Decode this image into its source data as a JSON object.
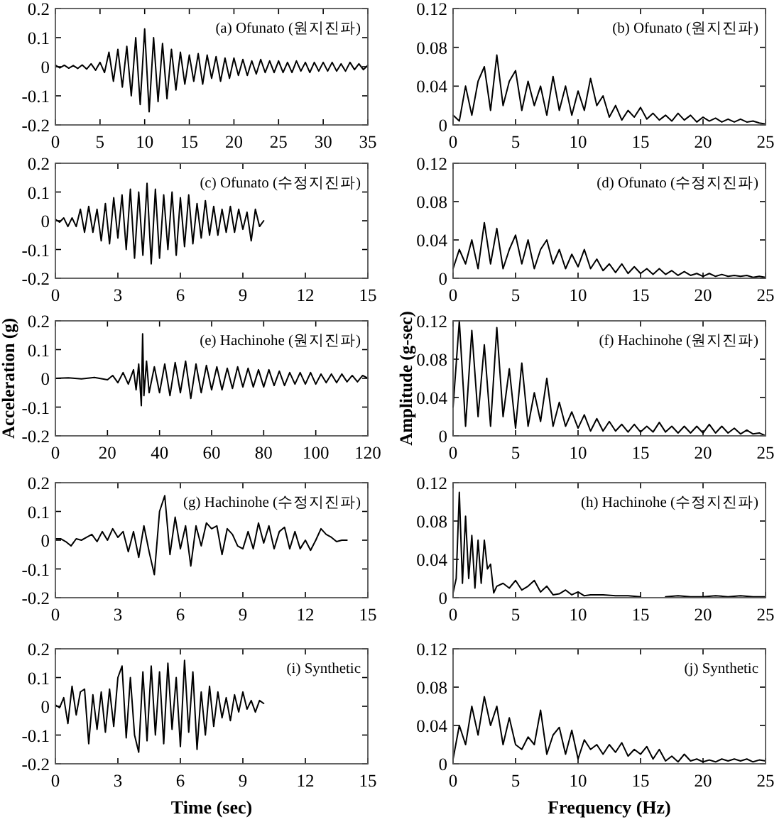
{
  "chart_data": [
    {
      "type": "line",
      "color": "#000000",
      "xlim": [
        0,
        35
      ],
      "xticks": [
        0,
        5,
        10,
        15,
        20,
        25,
        30,
        35
      ],
      "ylim": [
        -0.2,
        0.2
      ],
      "yticks": [
        -0.2,
        -0.1,
        0,
        0.1,
        0.2
      ],
      "annotations": [
        "(a) Ofunato (원지진파)"
      ],
      "x": [
        0,
        0.5,
        1,
        1.5,
        2,
        2.5,
        3,
        3.5,
        4,
        4.5,
        5,
        5.5,
        6,
        6.5,
        7,
        7.5,
        8,
        8.5,
        9,
        9.5,
        10,
        10.5,
        11,
        11.5,
        12,
        12.5,
        13,
        13.5,
        14,
        14.5,
        15,
        15.5,
        16,
        16.5,
        17,
        17.5,
        18,
        18.5,
        19,
        19.5,
        20,
        20.5,
        21,
        21.5,
        22,
        22.5,
        23,
        23.5,
        24,
        24.5,
        25,
        25.5,
        26,
        26.5,
        27,
        27.5,
        28,
        28.5,
        29,
        29.5,
        30,
        30.5,
        31,
        31.5,
        32,
        32.5,
        33,
        33.5,
        34,
        34.5,
        35
      ],
      "values": [
        0.005,
        -0.004,
        0.005,
        -0.005,
        0.004,
        -0.006,
        0.006,
        -0.008,
        0.01,
        -0.012,
        0.015,
        -0.02,
        0.05,
        -0.05,
        0.06,
        -0.07,
        0.07,
        -0.1,
        0.1,
        -0.13,
        0.13,
        -0.155,
        0.1,
        -0.12,
        0.08,
        -0.11,
        0.06,
        -0.08,
        0.05,
        -0.06,
        0.04,
        -0.05,
        0.045,
        -0.06,
        0.04,
        -0.04,
        0.035,
        -0.05,
        0.03,
        -0.04,
        0.03,
        -0.03,
        0.025,
        -0.03,
        0.02,
        -0.025,
        0.025,
        -0.02,
        0.02,
        -0.02,
        0.02,
        -0.02,
        0.015,
        -0.02,
        0.02,
        -0.015,
        0.015,
        -0.02,
        0.015,
        -0.015,
        0.015,
        -0.015,
        0.015,
        -0.015,
        0.01,
        -0.015,
        0.015,
        -0.01,
        0.01,
        -0.01,
        0.005
      ]
    },
    {
      "type": "line",
      "color": "#000000",
      "xlim": [
        0,
        25
      ],
      "xticks": [
        0,
        5,
        10,
        15,
        20,
        25
      ],
      "ylim": [
        0,
        0.12
      ],
      "yticks": [
        0,
        0.04,
        0.08,
        0.12
      ],
      "annotations": [
        "(b) Ofunato (원지진파)"
      ],
      "x": [
        0,
        0.5,
        1,
        1.5,
        2,
        2.5,
        3,
        3.5,
        4,
        4.5,
        5,
        5.5,
        6,
        6.5,
        7,
        7.5,
        8,
        8.5,
        9,
        9.5,
        10,
        10.5,
        11,
        11.5,
        12,
        12.5,
        13,
        13.5,
        14,
        14.5,
        15,
        15.5,
        16,
        16.5,
        17,
        17.5,
        18,
        18.5,
        19,
        19.5,
        20,
        20.5,
        21,
        21.5,
        22,
        22.5,
        23,
        23.5,
        24,
        24.5,
        25
      ],
      "values": [
        0.01,
        0.004,
        0.04,
        0.01,
        0.045,
        0.06,
        0.015,
        0.072,
        0.02,
        0.045,
        0.056,
        0.015,
        0.045,
        0.02,
        0.04,
        0.01,
        0.05,
        0.015,
        0.04,
        0.01,
        0.035,
        0.015,
        0.048,
        0.02,
        0.03,
        0.008,
        0.02,
        0.005,
        0.015,
        0.008,
        0.018,
        0.006,
        0.012,
        0.005,
        0.01,
        0.004,
        0.012,
        0.005,
        0.01,
        0.003,
        0.008,
        0.004,
        0.007,
        0.003,
        0.006,
        0.003,
        0.006,
        0.003,
        0.004,
        0.002,
        0.001
      ]
    },
    {
      "type": "line",
      "color": "#000000",
      "xlim": [
        0,
        15
      ],
      "xticks": [
        0,
        3,
        6,
        9,
        12,
        15
      ],
      "ylim": [
        -0.2,
        0.2
      ],
      "yticks": [
        -0.2,
        -0.1,
        0,
        0.1,
        0.2
      ],
      "annotations": [
        "(c) Ofunato (수정지진파)"
      ],
      "x": [
        0,
        0.2,
        0.4,
        0.6,
        0.8,
        1,
        1.2,
        1.4,
        1.6,
        1.8,
        2,
        2.2,
        2.4,
        2.6,
        2.8,
        3,
        3.2,
        3.4,
        3.6,
        3.8,
        4,
        4.2,
        4.4,
        4.6,
        4.8,
        5,
        5.2,
        5.4,
        5.6,
        5.8,
        6,
        6.2,
        6.4,
        6.6,
        6.8,
        7,
        7.2,
        7.4,
        7.6,
        7.8,
        8,
        8.2,
        8.4,
        8.6,
        8.8,
        9,
        9.2,
        9.4,
        9.6,
        9.8,
        10
      ],
      "values": [
        0.005,
        -0.005,
        0.01,
        -0.02,
        0.01,
        -0.02,
        0.04,
        -0.04,
        0.05,
        -0.04,
        0.04,
        -0.07,
        0.06,
        -0.08,
        0.08,
        -0.06,
        0.09,
        -0.1,
        0.11,
        -0.13,
        0.1,
        -0.12,
        0.13,
        -0.15,
        0.11,
        -0.13,
        0.09,
        -0.1,
        0.1,
        -0.12,
        0.08,
        -0.09,
        0.09,
        -0.08,
        0.06,
        -0.06,
        0.07,
        -0.05,
        0.05,
        -0.05,
        0.04,
        -0.04,
        0.05,
        -0.04,
        0.04,
        -0.03,
        0.03,
        -0.07,
        0.04,
        -0.02,
        0
      ]
    },
    {
      "type": "line",
      "color": "#000000",
      "xlim": [
        0,
        25
      ],
      "xticks": [
        0,
        5,
        10,
        15,
        20,
        25
      ],
      "ylim": [
        0,
        0.12
      ],
      "yticks": [
        0,
        0.04,
        0.08,
        0.12
      ],
      "annotations": [
        "(d) Ofunato (수정지진파)"
      ],
      "x": [
        0,
        0.5,
        1,
        1.5,
        2,
        2.5,
        3,
        3.5,
        4,
        4.5,
        5,
        5.5,
        6,
        6.5,
        7,
        7.5,
        8,
        8.5,
        9,
        9.5,
        10,
        10.5,
        11,
        11.5,
        12,
        12.5,
        13,
        13.5,
        14,
        14.5,
        15,
        15.5,
        16,
        16.5,
        17,
        17.5,
        18,
        18.5,
        19,
        19.5,
        20,
        20.5,
        21,
        21.5,
        22,
        22.5,
        23,
        23.5,
        24,
        24.5,
        25
      ],
      "values": [
        0.01,
        0.03,
        0.015,
        0.04,
        0.01,
        0.058,
        0.015,
        0.052,
        0.01,
        0.03,
        0.045,
        0.015,
        0.04,
        0.01,
        0.03,
        0.04,
        0.015,
        0.03,
        0.01,
        0.025,
        0.012,
        0.03,
        0.01,
        0.02,
        0.008,
        0.015,
        0.006,
        0.015,
        0.005,
        0.012,
        0.005,
        0.01,
        0.004,
        0.01,
        0.004,
        0.008,
        0.003,
        0.007,
        0.003,
        0.005,
        0.002,
        0.005,
        0.002,
        0.004,
        0.002,
        0.003,
        0.002,
        0.003,
        0.001,
        0.002,
        0.001
      ]
    },
    {
      "type": "line",
      "color": "#000000",
      "xlim": [
        0,
        120
      ],
      "xticks": [
        0,
        20,
        40,
        60,
        80,
        100,
        120
      ],
      "ylim": [
        -0.2,
        0.2
      ],
      "yticks": [
        -0.2,
        -0.1,
        0,
        0.1,
        0.2
      ],
      "ylabel": "Acceleration (g)",
      "annotations": [
        "(e) Hachinohe (원지진파)"
      ],
      "x": [
        0,
        5,
        10,
        15,
        20,
        22,
        24,
        26,
        28,
        30,
        31,
        32,
        33,
        33.5,
        34,
        35,
        36,
        38,
        40,
        42,
        44,
        46,
        48,
        50,
        52,
        54,
        56,
        58,
        60,
        62,
        64,
        66,
        68,
        70,
        72,
        74,
        76,
        78,
        80,
        82,
        84,
        86,
        88,
        90,
        92,
        94,
        96,
        98,
        100,
        102,
        104,
        106,
        108,
        110,
        112,
        114,
        116,
        118,
        120
      ],
      "values": [
        0,
        0.002,
        -0.002,
        0.003,
        -0.005,
        0.01,
        -0.015,
        0.02,
        -0.02,
        0.03,
        -0.04,
        0.05,
        -0.095,
        0.155,
        -0.06,
        0.06,
        -0.05,
        0.04,
        -0.05,
        0.05,
        -0.06,
        0.055,
        -0.05,
        0.06,
        -0.07,
        0.05,
        -0.05,
        0.045,
        -0.04,
        0.04,
        -0.04,
        0.035,
        -0.035,
        0.04,
        -0.03,
        0.035,
        -0.03,
        0.03,
        -0.03,
        0.03,
        -0.025,
        0.025,
        -0.025,
        0.02,
        -0.02,
        0.02,
        -0.02,
        0.02,
        -0.02,
        0.015,
        -0.015,
        0.015,
        -0.015,
        0.015,
        -0.012,
        0.01,
        -0.012,
        0.01,
        0
      ]
    },
    {
      "type": "line",
      "color": "#000000",
      "xlim": [
        0,
        25
      ],
      "xticks": [
        0,
        5,
        10,
        15,
        20,
        25
      ],
      "ylim": [
        0,
        0.12
      ],
      "yticks": [
        0,
        0.04,
        0.08,
        0.12
      ],
      "ylabel": "Amplitude (g-sec)",
      "annotations": [
        "(f) Hachinohe (원지진파)"
      ],
      "x": [
        0,
        0.5,
        1,
        1.5,
        2,
        2.5,
        3,
        3.5,
        4,
        4.5,
        5,
        5.5,
        6,
        6.5,
        7,
        7.5,
        8,
        8.5,
        9,
        9.5,
        10,
        10.5,
        11,
        11.5,
        12,
        12.5,
        13,
        13.5,
        14,
        14.5,
        15,
        15.5,
        16,
        16.5,
        17,
        17.5,
        18,
        18.5,
        19,
        19.5,
        20,
        20.5,
        21,
        21.5,
        22,
        22.5,
        23,
        23.5,
        24,
        24.5,
        25
      ],
      "values": [
        0.03,
        0.12,
        0.01,
        0.11,
        0.02,
        0.095,
        0.01,
        0.113,
        0.02,
        0.07,
        0.008,
        0.076,
        0.01,
        0.045,
        0.015,
        0.06,
        0.01,
        0.035,
        0.01,
        0.025,
        0.008,
        0.022,
        0.005,
        0.018,
        0.005,
        0.015,
        0.005,
        0.012,
        0.004,
        0.012,
        0.004,
        0.01,
        0.004,
        0.014,
        0.004,
        0.01,
        0.003,
        0.01,
        0.003,
        0.01,
        0.003,
        0.012,
        0.003,
        0.01,
        0.003,
        0.008,
        0.002,
        0.006,
        0.002,
        0.003,
        0
      ]
    },
    {
      "type": "line",
      "color": "#000000",
      "xlim": [
        0,
        15
      ],
      "xticks": [
        0,
        3,
        6,
        9,
        12,
        15
      ],
      "ylim": [
        -0.2,
        0.2
      ],
      "yticks": [
        -0.2,
        -0.1,
        0,
        0.1,
        0.2
      ],
      "annotations": [
        "(g) Hachinohe (수정지진파)"
      ],
      "x": [
        0,
        0.25,
        0.5,
        0.75,
        1,
        1.25,
        1.5,
        1.75,
        2,
        2.25,
        2.5,
        2.75,
        3,
        3.25,
        3.5,
        3.75,
        4,
        4.25,
        4.5,
        4.75,
        5,
        5.25,
        5.5,
        5.75,
        6,
        6.25,
        6.5,
        6.75,
        7,
        7.25,
        7.5,
        7.75,
        8,
        8.25,
        8.5,
        8.75,
        9,
        9.25,
        9.5,
        9.75,
        10,
        10.25,
        10.5,
        10.75,
        11,
        11.25,
        11.5,
        11.75,
        12,
        12.25,
        12.5,
        12.75,
        13,
        13.25,
        13.5,
        13.75,
        14
      ],
      "values": [
        0.005,
        0.005,
        -0.005,
        -0.02,
        0.005,
        0,
        0.01,
        0.02,
        -0.005,
        0.03,
        0,
        0.04,
        0.01,
        0.03,
        -0.04,
        0.03,
        -0.06,
        0.05,
        -0.04,
        -0.12,
        0.1,
        0.155,
        -0.05,
        0.08,
        -0.03,
        0.05,
        -0.09,
        0.05,
        -0.02,
        0.06,
        0.04,
        0.05,
        -0.05,
        0.04,
        0.02,
        -0.02,
        -0.03,
        0.03,
        -0.03,
        0.06,
        -0.01,
        0.05,
        -0.03,
        0.03,
        0.045,
        -0.03,
        0.03,
        -0.03,
        0,
        -0.035,
        0,
        0.04,
        0.02,
        0.01,
        -0.005,
        0,
        0
      ]
    },
    {
      "type": "line",
      "color": "#000000",
      "xlim": [
        0,
        25
      ],
      "xticks": [
        0,
        5,
        10,
        15,
        20,
        25
      ],
      "ylim": [
        0,
        0.12
      ],
      "yticks": [
        0,
        0.04,
        0.08,
        0.12
      ],
      "annotations": [
        "(h) Hachinohe (수정지진파)"
      ],
      "x": [
        0,
        0.25,
        0.5,
        0.75,
        1,
        1.25,
        1.5,
        1.75,
        2,
        2.25,
        2.5,
        2.75,
        3,
        3.25,
        3.5,
        4,
        4.5,
        5,
        5.5,
        6,
        6.5,
        7,
        7.5,
        8,
        8.5,
        9,
        9.5,
        10,
        10.5,
        11,
        12,
        13,
        14,
        15,
        16,
        17,
        18,
        19,
        20,
        21,
        22,
        23,
        24,
        25
      ],
      "values": [
        0.005,
        0.02,
        0.11,
        0.015,
        0.085,
        0.02,
        0.065,
        0.01,
        0.06,
        0.015,
        0.06,
        0.03,
        0.035,
        0.005,
        0.012,
        0.015,
        0.01,
        0.018,
        0.008,
        0.012,
        0.018,
        0.006,
        0.012,
        0.003,
        0.004,
        0.008,
        0.003,
        0.006,
        0.002,
        0.003,
        0.003,
        0.002,
        0.002,
        0.001,
        null,
        0.001,
        0.002,
        0.001,
        0.001,
        0.002,
        0.001,
        0.002,
        0.001,
        0.001
      ]
    },
    {
      "type": "line",
      "color": "#000000",
      "xlim": [
        0,
        15
      ],
      "xticks": [
        0,
        3,
        6,
        9,
        12,
        15
      ],
      "ylim": [
        -0.2,
        0.2
      ],
      "yticks": [
        -0.2,
        -0.1,
        0,
        0.1,
        0.2
      ],
      "xlabel": "Time (sec)",
      "annotations": [
        "(i) Synthetic"
      ],
      "x": [
        0,
        0.2,
        0.4,
        0.6,
        0.8,
        1,
        1.2,
        1.4,
        1.6,
        1.8,
        2,
        2.2,
        2.4,
        2.6,
        2.8,
        3,
        3.2,
        3.4,
        3.6,
        3.8,
        4,
        4.2,
        4.4,
        4.6,
        4.8,
        5,
        5.2,
        5.4,
        5.6,
        5.8,
        6,
        6.2,
        6.4,
        6.6,
        6.8,
        7,
        7.2,
        7.4,
        7.6,
        7.8,
        8,
        8.2,
        8.4,
        8.6,
        8.8,
        9,
        9.2,
        9.4,
        9.6,
        9.8,
        10
      ],
      "values": [
        0.005,
        -0.005,
        0.03,
        -0.06,
        0.07,
        -0.03,
        0.05,
        0.06,
        -0.13,
        0.04,
        -0.08,
        0.05,
        -0.09,
        0.06,
        -0.07,
        0.1,
        0.14,
        -0.11,
        0.1,
        -0.1,
        -0.16,
        0.12,
        -0.12,
        0.14,
        -0.1,
        0.12,
        -0.13,
        0.15,
        -0.08,
        0.1,
        -0.14,
        0.16,
        -0.09,
        0.12,
        -0.15,
        0.05,
        -0.1,
        0.07,
        -0.07,
        0.05,
        -0.04,
        0.03,
        -0.05,
        0.04,
        -0.02,
        0.05,
        -0.01,
        0.02,
        -0.02,
        0.02,
        0.01
      ]
    },
    {
      "type": "line",
      "color": "#000000",
      "xlim": [
        0,
        25
      ],
      "xticks": [
        0,
        5,
        10,
        15,
        20,
        25
      ],
      "ylim": [
        0,
        0.12
      ],
      "yticks": [
        0,
        0.04,
        0.08,
        0.12
      ],
      "xlabel": "Frequency (Hz)",
      "annotations": [
        "(j) Synthetic"
      ],
      "x": [
        0,
        0.5,
        1,
        1.5,
        2,
        2.5,
        3,
        3.5,
        4,
        4.5,
        5,
        5.5,
        6,
        6.5,
        7,
        7.5,
        8,
        8.5,
        9,
        9.5,
        10,
        10.5,
        11,
        11.5,
        12,
        12.5,
        13,
        13.5,
        14,
        14.5,
        15,
        15.5,
        16,
        16.5,
        17,
        17.5,
        18,
        18.5,
        19,
        19.5,
        20,
        20.5,
        21,
        21.5,
        22,
        22.5,
        23,
        23.5,
        24,
        24.5,
        25
      ],
      "values": [
        0.005,
        0.04,
        0.02,
        0.06,
        0.03,
        0.07,
        0.04,
        0.06,
        0.02,
        0.048,
        0.02,
        0.015,
        0.028,
        0.02,
        0.056,
        0.01,
        0.03,
        0.038,
        0.01,
        0.035,
        0.005,
        0.025,
        0.015,
        0.02,
        0.01,
        0.02,
        0.012,
        0.022,
        0.008,
        0.015,
        0.01,
        0.018,
        0.005,
        0.015,
        0.003,
        0.008,
        0.002,
        0.01,
        0.003,
        0.005,
        0.002,
        0.004,
        0.002,
        0.005,
        0.003,
        0.005,
        0.003,
        0.005,
        0.002,
        0.004,
        0.003
      ]
    }
  ]
}
